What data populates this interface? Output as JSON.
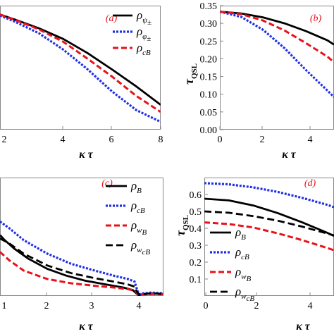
{
  "chart_data": [
    {
      "panel": "(a)",
      "type": "line",
      "xlabel": "κ τ",
      "xticks": [
        "2",
        "4",
        "6",
        "8"
      ],
      "xlim": [
        1.4,
        8.0
      ],
      "ylim": [
        0.0,
        0.35
      ],
      "legend_position": "top-right",
      "series": [
        {
          "name": "ρψ±",
          "base": "ρ",
          "sub": "ψ",
          "sup": "±",
          "color": "#000000",
          "style": "solid",
          "x": [
            1.4,
            2,
            3,
            4,
            5,
            6,
            7,
            8
          ],
          "y": [
            0.325,
            0.311,
            0.286,
            0.256,
            0.216,
            0.17,
            0.122,
            0.07
          ]
        },
        {
          "name": "ρφ±",
          "base": "ρ",
          "sub": "φ",
          "sup": "±",
          "color": "#1f2fe8",
          "style": "dotted",
          "x": [
            1.4,
            2,
            3,
            4,
            5,
            6,
            7,
            8
          ],
          "y": [
            0.322,
            0.305,
            0.272,
            0.226,
            0.17,
            0.108,
            0.055,
            0.022
          ]
        },
        {
          "name": "ρcB",
          "base": "ρ",
          "sub": "cB",
          "sup": "",
          "color": "#e8121b",
          "style": "dashed",
          "x": [
            1.4,
            2,
            3,
            4,
            5,
            6,
            7,
            8
          ],
          "y": [
            0.325,
            0.31,
            0.283,
            0.248,
            0.2,
            0.15,
            0.095,
            0.05
          ]
        }
      ]
    },
    {
      "panel": "(b)",
      "type": "line",
      "xlabel": "κ τ",
      "ylabel": "τ",
      "ylabel_sub": "QSL",
      "xticks": [
        "0",
        "2",
        "4"
      ],
      "yticks": [
        "0.00",
        "0.05",
        "0.10",
        "0.15",
        "0.20",
        "0.25",
        "0.30",
        "0.35"
      ],
      "xlim": [
        0,
        5.3
      ],
      "ylim": [
        0.0,
        0.35
      ],
      "series": [
        {
          "name": "ρψ±",
          "color": "#000000",
          "style": "solid",
          "x": [
            0,
            1,
            2,
            3,
            4,
            5,
            5.3
          ],
          "y": [
            0.333,
            0.328,
            0.317,
            0.3,
            0.278,
            0.252,
            0.24
          ]
        },
        {
          "name": "ρφ±",
          "color": "#1f2fe8",
          "style": "dotted",
          "x": [
            0,
            1,
            2,
            3,
            4,
            5,
            5.3
          ],
          "y": [
            0.333,
            0.318,
            0.282,
            0.23,
            0.168,
            0.11,
            0.092
          ]
        },
        {
          "name": "ρcB",
          "color": "#e8121b",
          "style": "dashed",
          "x": [
            0,
            1,
            2,
            3,
            4,
            5,
            5.3
          ],
          "y": [
            0.333,
            0.326,
            0.308,
            0.28,
            0.244,
            0.206,
            0.19
          ]
        }
      ]
    },
    {
      "panel": "(c)",
      "type": "line",
      "xlabel": "κ τ",
      "xticks": [
        "1",
        "2",
        "3",
        "4"
      ],
      "xlim": [
        1.0,
        4.45
      ],
      "ylim": [
        0.0,
        0.7
      ],
      "legend_position": "top-right",
      "series": [
        {
          "name": "ρB",
          "base": "ρ",
          "sub": "B",
          "sup": "",
          "color": "#000000",
          "style": "solid",
          "x": [
            1.0,
            1.1,
            1.3,
            1.6,
            2.0,
            2.4,
            2.8,
            3.2,
            3.6,
            3.8,
            3.86,
            3.92,
            4.0,
            4.2,
            4.45
          ],
          "y": [
            0.36,
            0.33,
            0.28,
            0.22,
            0.16,
            0.12,
            0.09,
            0.07,
            0.05,
            0.035,
            0.02,
            0.005,
            0.01,
            0.015,
            0.012
          ]
        },
        {
          "name": "ρcB",
          "base": "ρ",
          "sub": "cB",
          "sup": "",
          "color": "#1f2fe8",
          "style": "dotted",
          "x": [
            1.0,
            1.2,
            1.5,
            2.0,
            2.5,
            3.0,
            3.4,
            3.7,
            3.84,
            3.9,
            3.95,
            4.0,
            4.2,
            4.45
          ],
          "y": [
            0.44,
            0.4,
            0.33,
            0.25,
            0.19,
            0.15,
            0.12,
            0.1,
            0.085,
            0.03,
            0.01,
            0.015,
            0.02,
            0.015
          ]
        },
        {
          "name": "ρwB",
          "base": "ρ",
          "sub": "w",
          "subsub": "B",
          "sup": "",
          "color": "#e8121b",
          "style": "dashed",
          "x": [
            1.0,
            1.2,
            1.5,
            2.0,
            2.5,
            3.0,
            3.4,
            3.7,
            3.86,
            3.92,
            4.0,
            4.2,
            4.45
          ],
          "y": [
            0.26,
            0.21,
            0.15,
            0.1,
            0.075,
            0.06,
            0.05,
            0.04,
            0.03,
            0.005,
            0.008,
            0.012,
            0.01
          ]
        },
        {
          "name": "ρwcB",
          "base": "ρ",
          "sub": "w",
          "subsub": "cB",
          "sup": "",
          "color": "#000000",
          "style": "longdash",
          "x": [
            1.0,
            1.2,
            1.5,
            2.0,
            2.5,
            3.0,
            3.4,
            3.7,
            3.84,
            3.9,
            3.95,
            4.0,
            4.2,
            4.45
          ],
          "y": [
            0.34,
            0.31,
            0.25,
            0.18,
            0.135,
            0.105,
            0.085,
            0.068,
            0.055,
            0.02,
            0.006,
            0.01,
            0.015,
            0.012
          ]
        }
      ]
    },
    {
      "panel": "(d)",
      "type": "line",
      "xlabel": "κ τ",
      "ylabel": "τ",
      "ylabel_sub": "QSL",
      "xticks": [
        "0",
        "2",
        "4"
      ],
      "yticks": [
        "0.1",
        "0.2",
        "0.3",
        "0.4",
        "0.5",
        "0.6"
      ],
      "xlim": [
        0,
        5.3
      ],
      "ylim": [
        0.0,
        0.7
      ],
      "legend_position": "bottom-left",
      "series": [
        {
          "name": "ρB",
          "base": "ρ",
          "sub": "B",
          "sup": "",
          "color": "#000000",
          "style": "solid",
          "x": [
            0,
            1,
            2,
            3,
            4,
            5,
            5.3
          ],
          "y": [
            0.575,
            0.565,
            0.535,
            0.49,
            0.435,
            0.375,
            0.355
          ]
        },
        {
          "name": "ρcB",
          "base": "ρ",
          "sub": "cB",
          "sup": "",
          "color": "#1f2fe8",
          "style": "dotted",
          "x": [
            0,
            1,
            2,
            3,
            4,
            5,
            5.3
          ],
          "y": [
            0.667,
            0.66,
            0.642,
            0.615,
            0.58,
            0.54,
            0.525
          ]
        },
        {
          "name": "ρwB",
          "base": "ρ",
          "sub": "w",
          "subsub": "B",
          "sup": "",
          "color": "#e8121b",
          "style": "dashed",
          "x": [
            0,
            1,
            2,
            3,
            4,
            5,
            5.3
          ],
          "y": [
            0.435,
            0.425,
            0.405,
            0.37,
            0.33,
            0.285,
            0.27
          ]
        },
        {
          "name": "ρwcB",
          "base": "ρ",
          "sub": "w",
          "subsub": "cB",
          "sup": "",
          "color": "#000000",
          "style": "longdash",
          "x": [
            0,
            1,
            2,
            3,
            4,
            5,
            5.3
          ],
          "y": [
            0.5,
            0.492,
            0.472,
            0.445,
            0.41,
            0.37,
            0.358
          ]
        }
      ]
    }
  ]
}
